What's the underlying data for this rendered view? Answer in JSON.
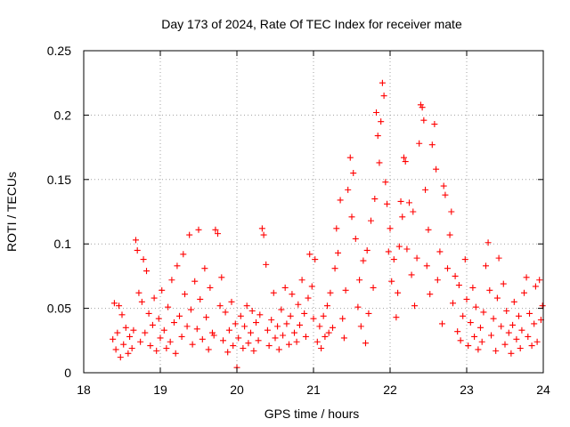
{
  "chart_data": {
    "type": "scatter",
    "title": "Day 173 of 2024, Rate Of TEC Index for receiver mate",
    "xlabel": "GPS time / hours",
    "ylabel": "ROTI / TECUs",
    "xlim": [
      18,
      24
    ],
    "ylim": [
      0,
      0.25
    ],
    "xticks": [
      18,
      19,
      20,
      21,
      22,
      23,
      24
    ],
    "yticks": [
      0,
      0.05,
      0.1,
      0.15,
      0.2,
      0.25
    ],
    "xtick_labels": [
      "18",
      "19",
      "20",
      "21",
      "22",
      "23",
      "24"
    ],
    "ytick_labels": [
      "0",
      "0.05",
      "0.1",
      "0.15",
      "0.2",
      "0.25"
    ],
    "grid": true,
    "marker": "+",
    "series": [
      {
        "name": "ROTI",
        "color": "#ff0000",
        "points": [
          [
            18.38,
            0.026
          ],
          [
            18.4,
            0.054
          ],
          [
            18.42,
            0.018
          ],
          [
            18.44,
            0.031
          ],
          [
            18.46,
            0.052
          ],
          [
            18.48,
            0.012
          ],
          [
            18.5,
            0.045
          ],
          [
            18.52,
            0.022
          ],
          [
            18.55,
            0.035
          ],
          [
            18.58,
            0.015
          ],
          [
            18.6,
            0.028
          ],
          [
            18.63,
            0.019
          ],
          [
            18.65,
            0.033
          ],
          [
            18.68,
            0.103
          ],
          [
            18.7,
            0.095
          ],
          [
            18.72,
            0.062
          ],
          [
            18.74,
            0.024
          ],
          [
            18.76,
            0.055
          ],
          [
            18.78,
            0.088
          ],
          [
            18.8,
            0.031
          ],
          [
            18.82,
            0.079
          ],
          [
            18.85,
            0.046
          ],
          [
            18.87,
            0.021
          ],
          [
            18.9,
            0.037
          ],
          [
            18.92,
            0.058
          ],
          [
            18.95,
            0.017
          ],
          [
            18.98,
            0.042
          ],
          [
            19.0,
            0.027
          ],
          [
            19.02,
            0.064
          ],
          [
            19.05,
            0.033
          ],
          [
            19.08,
            0.019
          ],
          [
            19.1,
            0.051
          ],
          [
            19.13,
            0.024
          ],
          [
            19.15,
            0.072
          ],
          [
            19.18,
            0.039
          ],
          [
            19.2,
            0.015
          ],
          [
            19.22,
            0.083
          ],
          [
            19.25,
            0.044
          ],
          [
            19.28,
            0.028
          ],
          [
            19.3,
            0.092
          ],
          [
            19.32,
            0.061
          ],
          [
            19.35,
            0.036
          ],
          [
            19.38,
            0.107
          ],
          [
            19.4,
            0.049
          ],
          [
            19.42,
            0.022
          ],
          [
            19.45,
            0.071
          ],
          [
            19.48,
            0.034
          ],
          [
            19.5,
            0.111
          ],
          [
            19.52,
            0.057
          ],
          [
            19.55,
            0.026
          ],
          [
            19.58,
            0.081
          ],
          [
            19.6,
            0.043
          ],
          [
            19.63,
            0.018
          ],
          [
            19.65,
            0.066
          ],
          [
            19.68,
            0.031
          ],
          [
            19.7,
            0.029
          ],
          [
            19.72,
            0.111
          ],
          [
            19.75,
            0.108
          ],
          [
            19.78,
            0.052
          ],
          [
            19.8,
            0.074
          ],
          [
            19.82,
            0.025
          ],
          [
            19.85,
            0.047
          ],
          [
            19.88,
            0.016
          ],
          [
            19.9,
            0.033
          ],
          [
            19.93,
            0.055
          ],
          [
            19.95,
            0.021
          ],
          [
            19.98,
            0.038
          ],
          [
            20.0,
            0.004
          ],
          [
            20.02,
            0.027
          ],
          [
            20.05,
            0.044
          ],
          [
            20.08,
            0.019
          ],
          [
            20.1,
            0.036
          ],
          [
            20.13,
            0.052
          ],
          [
            20.15,
            0.023
          ],
          [
            20.18,
            0.031
          ],
          [
            20.2,
            0.048
          ],
          [
            20.22,
            0.017
          ],
          [
            20.25,
            0.039
          ],
          [
            20.28,
            0.025
          ],
          [
            20.3,
            0.045
          ],
          [
            20.33,
            0.112
          ],
          [
            20.35,
            0.107
          ],
          [
            20.38,
            0.084
          ],
          [
            20.4,
            0.033
          ],
          [
            20.42,
            0.021
          ],
          [
            20.45,
            0.041
          ],
          [
            20.48,
            0.062
          ],
          [
            20.5,
            0.027
          ],
          [
            20.53,
            0.036
          ],
          [
            20.55,
            0.018
          ],
          [
            20.58,
            0.049
          ],
          [
            20.6,
            0.029
          ],
          [
            20.63,
            0.066
          ],
          [
            20.65,
            0.038
          ],
          [
            20.68,
            0.022
          ],
          [
            20.7,
            0.044
          ],
          [
            20.72,
            0.061
          ],
          [
            20.75,
            0.031
          ],
          [
            20.78,
            0.024
          ],
          [
            20.8,
            0.053
          ],
          [
            20.82,
            0.037
          ],
          [
            20.85,
            0.072
          ],
          [
            20.88,
            0.046
          ],
          [
            20.9,
            0.028
          ],
          [
            20.93,
            0.058
          ],
          [
            20.95,
            0.092
          ],
          [
            20.98,
            0.067
          ],
          [
            21.0,
            0.042
          ],
          [
            21.02,
            0.088
          ],
          [
            21.05,
            0.024
          ],
          [
            21.08,
            0.036
          ],
          [
            21.1,
            0.019
          ],
          [
            21.13,
            0.044
          ],
          [
            21.15,
            0.028
          ],
          [
            21.18,
            0.052
          ],
          [
            21.2,
            0.031
          ],
          [
            21.22,
            0.062
          ],
          [
            21.25,
            0.035
          ],
          [
            21.28,
            0.081
          ],
          [
            21.3,
            0.112
          ],
          [
            21.32,
            0.093
          ],
          [
            21.35,
            0.134
          ],
          [
            21.38,
            0.042
          ],
          [
            21.4,
            0.027
          ],
          [
            21.42,
            0.064
          ],
          [
            21.45,
            0.142
          ],
          [
            21.48,
            0.167
          ],
          [
            21.5,
            0.121
          ],
          [
            21.52,
            0.155
          ],
          [
            21.55,
            0.104
          ],
          [
            21.58,
            0.051
          ],
          [
            21.6,
            0.072
          ],
          [
            21.62,
            0.036
          ],
          [
            21.65,
            0.087
          ],
          [
            21.68,
            0.023
          ],
          [
            21.7,
            0.095
          ],
          [
            21.72,
            0.046
          ],
          [
            21.75,
            0.118
          ],
          [
            21.78,
            0.066
          ],
          [
            21.8,
            0.135
          ],
          [
            21.82,
            0.202
          ],
          [
            21.84,
            0.184
          ],
          [
            21.86,
            0.163
          ],
          [
            21.88,
            0.195
          ],
          [
            21.9,
            0.225
          ],
          [
            21.92,
            0.215
          ],
          [
            21.94,
            0.148
          ],
          [
            21.96,
            0.131
          ],
          [
            21.98,
            0.094
          ],
          [
            22.0,
            0.112
          ],
          [
            22.02,
            0.071
          ],
          [
            22.05,
            0.088
          ],
          [
            22.08,
            0.043
          ],
          [
            22.1,
            0.062
          ],
          [
            22.12,
            0.098
          ],
          [
            22.14,
            0.133
          ],
          [
            22.16,
            0.121
          ],
          [
            22.18,
            0.167
          ],
          [
            22.2,
            0.164
          ],
          [
            22.22,
            0.096
          ],
          [
            22.25,
            0.132
          ],
          [
            22.28,
            0.076
          ],
          [
            22.3,
            0.125
          ],
          [
            22.32,
            0.052
          ],
          [
            22.35,
            0.089
          ],
          [
            22.38,
            0.178
          ],
          [
            22.4,
            0.208
          ],
          [
            22.42,
            0.206
          ],
          [
            22.44,
            0.196
          ],
          [
            22.46,
            0.142
          ],
          [
            22.48,
            0.083
          ],
          [
            22.5,
            0.111
          ],
          [
            22.52,
            0.061
          ],
          [
            22.55,
            0.177
          ],
          [
            22.58,
            0.193
          ],
          [
            22.6,
            0.158
          ],
          [
            22.62,
            0.072
          ],
          [
            22.65,
            0.094
          ],
          [
            22.68,
            0.038
          ],
          [
            22.7,
            0.145
          ],
          [
            22.72,
            0.138
          ],
          [
            22.75,
            0.081
          ],
          [
            22.78,
            0.107
          ],
          [
            22.8,
            0.125
          ],
          [
            22.82,
            0.054
          ],
          [
            22.85,
            0.075
          ],
          [
            22.88,
            0.032
          ],
          [
            22.9,
            0.068
          ],
          [
            22.92,
            0.025
          ],
          [
            22.95,
            0.044
          ],
          [
            22.98,
            0.088
          ],
          [
            23.0,
            0.057
          ],
          [
            23.02,
            0.021
          ],
          [
            23.05,
            0.039
          ],
          [
            23.08,
            0.066
          ],
          [
            23.1,
            0.028
          ],
          [
            23.12,
            0.051
          ],
          [
            23.15,
            0.018
          ],
          [
            23.18,
            0.035
          ],
          [
            23.2,
            0.024
          ],
          [
            23.22,
            0.047
          ],
          [
            23.25,
            0.083
          ],
          [
            23.28,
            0.101
          ],
          [
            23.3,
            0.064
          ],
          [
            23.32,
            0.029
          ],
          [
            23.35,
            0.042
          ],
          [
            23.38,
            0.017
          ],
          [
            23.4,
            0.058
          ],
          [
            23.42,
            0.089
          ],
          [
            23.45,
            0.036
          ],
          [
            23.48,
            0.069
          ],
          [
            23.5,
            0.022
          ],
          [
            23.52,
            0.048
          ],
          [
            23.55,
            0.031
          ],
          [
            23.58,
            0.015
          ],
          [
            23.6,
            0.037
          ],
          [
            23.62,
            0.055
          ],
          [
            23.65,
            0.026
          ],
          [
            23.68,
            0.044
          ],
          [
            23.7,
            0.019
          ],
          [
            23.72,
            0.033
          ],
          [
            23.75,
            0.062
          ],
          [
            23.78,
            0.074
          ],
          [
            23.8,
            0.028
          ],
          [
            23.82,
            0.046
          ],
          [
            23.85,
            0.021
          ],
          [
            23.88,
            0.038
          ],
          [
            23.9,
            0.067
          ],
          [
            23.92,
            0.024
          ],
          [
            23.95,
            0.072
          ],
          [
            23.97,
            0.041
          ],
          [
            23.99,
            0.052
          ]
        ]
      }
    ]
  }
}
